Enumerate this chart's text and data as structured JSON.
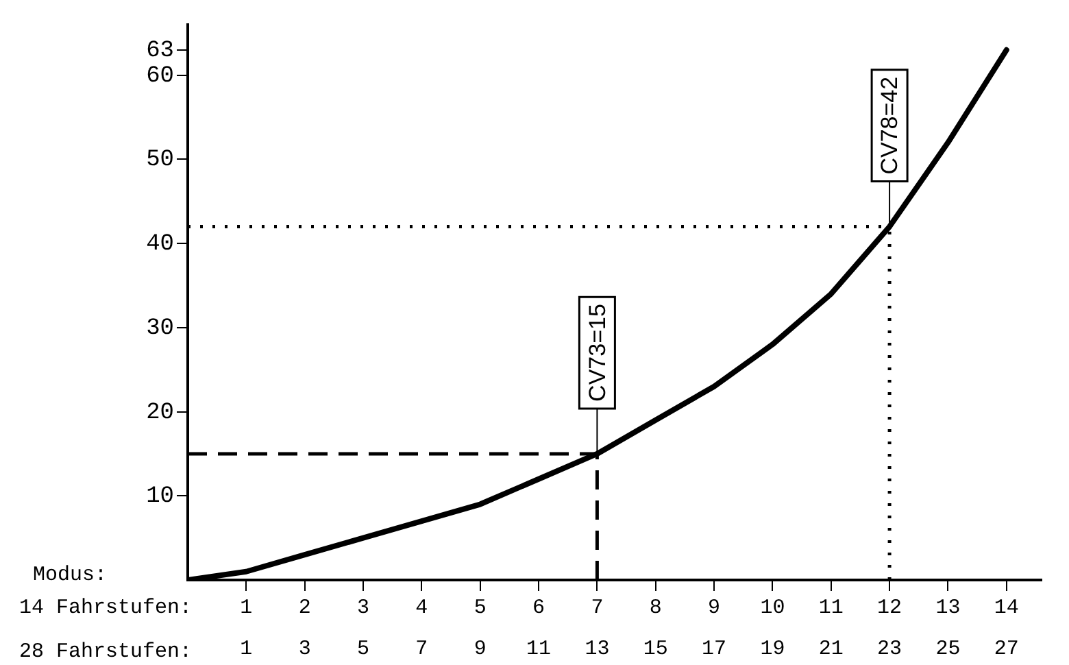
{
  "chart_data": {
    "type": "line",
    "xlabel": "Modus:",
    "x": [
      0,
      1,
      2,
      3,
      4,
      5,
      6,
      7,
      8,
      9,
      10,
      11,
      12,
      13,
      14
    ],
    "series": [
      {
        "color": "#000000",
        "values": [
          0,
          1,
          3,
          5,
          7,
          9,
          12,
          15,
          19,
          23,
          28,
          34,
          42,
          52,
          63
        ]
      }
    ],
    "xlim": [
      0,
      14.6
    ],
    "xticks": [
      1,
      2,
      3,
      4,
      5,
      6,
      7,
      8,
      9,
      10,
      11,
      12,
      13,
      14
    ],
    "x2lim": [
      -1,
      28.2
    ],
    "x2ticks": [
      1,
      3,
      5,
      7,
      9,
      11,
      13,
      15,
      17,
      19,
      21,
      23,
      25,
      27
    ],
    "ylim": [
      0,
      66
    ],
    "yticks": [
      10,
      20,
      30,
      40,
      50,
      60,
      63
    ],
    "ref_lines": [
      {
        "axis": "y",
        "value": 15,
        "line_style": "dashed"
      },
      {
        "axis": "x",
        "value": 7,
        "line_style": "dashed"
      },
      {
        "axis": "y",
        "value": 42,
        "line_style": "dotted"
      },
      {
        "axis": "x",
        "value": 12,
        "line_style": "dotted"
      }
    ],
    "annotations": [
      "14 Fahrstufen:",
      "28 Fahrstufen:",
      {
        "text": "CV73=15",
        "x": 7,
        "y": 15
      },
      {
        "text": "CV78=42",
        "x": 12,
        "y": 42
      }
    ],
    "grid": false,
    "legend": false,
    "marker": "none",
    "line_style": "solid"
  }
}
